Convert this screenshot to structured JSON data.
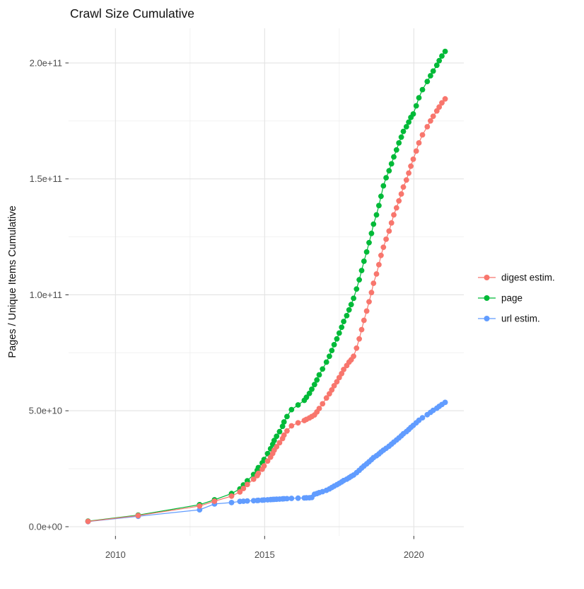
{
  "chart_data": {
    "type": "line",
    "title": "Crawl Size Cumulative",
    "xlabel": "",
    "ylabel": "Pages / Unique Items Cumulative",
    "legend_position": "right-center",
    "grid": "major and minor gridlines, light grey on white background",
    "unit_note": "values_billion are in units of 1e9 pages / unique items",
    "x_axis": {
      "tick_values": [
        2010,
        2015,
        2020
      ],
      "tick_labels": [
        "2010",
        "2015",
        "2020"
      ],
      "minor_tick_values": [
        2012.5,
        2017.5
      ],
      "range": [
        2008.4,
        2021.7
      ]
    },
    "y_axis": {
      "tick_values_billion": [
        0,
        50,
        100,
        150,
        200
      ],
      "tick_labels": [
        "0.0e+00",
        "5.0e+10",
        "1.0e+11",
        "1.5e+11",
        "2.0e+11"
      ],
      "minor_tick_values_billion": [
        25,
        75,
        125,
        175
      ],
      "range_billion": [
        -5,
        217
      ]
    },
    "x_years": [
      2009.08,
      2010.76,
      2012.82,
      2013.32,
      2013.89,
      2014.17,
      2014.29,
      2014.42,
      2014.63,
      2014.75,
      2014.79,
      2014.92,
      2014.98,
      2015.1,
      2015.2,
      2015.27,
      2015.32,
      2015.4,
      2015.5,
      2015.6,
      2015.65,
      2015.75,
      2015.9,
      2016.12,
      2016.33,
      2016.4,
      2016.5,
      2016.58,
      2016.67,
      2016.75,
      2016.83,
      2016.94,
      2017.07,
      2017.17,
      2017.25,
      2017.33,
      2017.42,
      2017.5,
      2017.58,
      2017.65,
      2017.75,
      2017.83,
      2017.9,
      2017.98,
      2018.08,
      2018.17,
      2018.25,
      2018.33,
      2018.42,
      2018.5,
      2018.58,
      2018.65,
      2018.75,
      2018.83,
      2018.9,
      2018.98,
      2019.07,
      2019.17,
      2019.25,
      2019.33,
      2019.42,
      2019.5,
      2019.58,
      2019.65,
      2019.75,
      2019.83,
      2019.9,
      2019.98,
      2020.08,
      2020.17,
      2020.29,
      2020.45,
      2020.56,
      2020.65,
      2020.77,
      2020.85,
      2020.94,
      2021.05
    ],
    "series": [
      {
        "name": "digest estim.",
        "color": "#F8766D",
        "values_billion": [
          2.3,
          4.8,
          8.9,
          11.0,
          13.2,
          15.0,
          16.5,
          18.2,
          20.5,
          22.0,
          23.0,
          24.8,
          26.2,
          28.3,
          30.0,
          31.6,
          33.0,
          34.5,
          36.2,
          38.0,
          39.5,
          41.3,
          43.5,
          44.8,
          45.8,
          46.3,
          46.9,
          47.5,
          48.2,
          49.5,
          51.0,
          53.0,
          55.5,
          57.3,
          59.0,
          60.8,
          62.5,
          64.3,
          66.0,
          67.8,
          69.5,
          71.0,
          72.0,
          73.5,
          77.0,
          81.0,
          85.0,
          89.0,
          93.0,
          97.0,
          101.0,
          105.0,
          109.0,
          113.0,
          117.0,
          120.5,
          124.0,
          127.5,
          131.0,
          134.5,
          137.5,
          140.5,
          143.5,
          146.5,
          149.5,
          152.5,
          155.5,
          158.5,
          162.0,
          165.5,
          169.0,
          172.5,
          175.0,
          177.0,
          179.3,
          181.0,
          182.8,
          184.5
        ]
      },
      {
        "name": "page",
        "color": "#00BA38",
        "values_billion": [
          2.4,
          5.0,
          9.5,
          11.6,
          14.3,
          16.3,
          18.0,
          19.8,
          22.5,
          24.3,
          25.5,
          27.5,
          29.0,
          31.5,
          33.6,
          35.5,
          37.2,
          39.0,
          41.0,
          43.3,
          45.2,
          47.5,
          50.5,
          52.5,
          54.5,
          55.8,
          57.5,
          59.3,
          61.3,
          63.3,
          65.5,
          68.0,
          71.0,
          73.5,
          76.0,
          78.5,
          81.0,
          83.5,
          86.0,
          88.5,
          91.0,
          93.5,
          95.8,
          98.5,
          102.5,
          106.5,
          110.5,
          114.5,
          118.5,
          122.5,
          126.5,
          130.5,
          134.5,
          138.5,
          142.5,
          147.0,
          150.5,
          153.5,
          156.5,
          159.5,
          162.5,
          165.5,
          168.0,
          170.5,
          172.5,
          174.5,
          176.5,
          178.0,
          181.5,
          185.0,
          188.5,
          192.0,
          194.5,
          196.5,
          199.0,
          201.0,
          203.0,
          205.0
        ]
      },
      {
        "name": "url estim.",
        "color": "#619CFF",
        "values_billion": [
          2.2,
          4.5,
          7.3,
          9.8,
          10.4,
          10.9,
          11.0,
          11.1,
          11.2,
          11.3,
          11.35,
          11.45,
          11.5,
          11.6,
          11.7,
          11.75,
          11.8,
          11.85,
          11.9,
          12.0,
          12.05,
          12.1,
          12.2,
          12.3,
          12.4,
          12.45,
          12.5,
          12.6,
          14.0,
          14.3,
          14.7,
          15.1,
          15.7,
          16.3,
          16.9,
          17.5,
          18.1,
          18.7,
          19.3,
          19.9,
          20.5,
          21.1,
          21.7,
          22.3,
          23.3,
          24.3,
          25.3,
          26.2,
          27.1,
          28.0,
          28.9,
          29.8,
          30.6,
          31.4,
          32.2,
          33.0,
          33.8,
          34.7,
          35.6,
          36.5,
          37.4,
          38.3,
          39.2,
          40.1,
          41.0,
          41.9,
          42.8,
          43.7,
          44.8,
          45.9,
          47.0,
          48.3,
          49.3,
          50.2,
          51.1,
          51.9,
          52.7,
          53.6
        ]
      }
    ]
  }
}
